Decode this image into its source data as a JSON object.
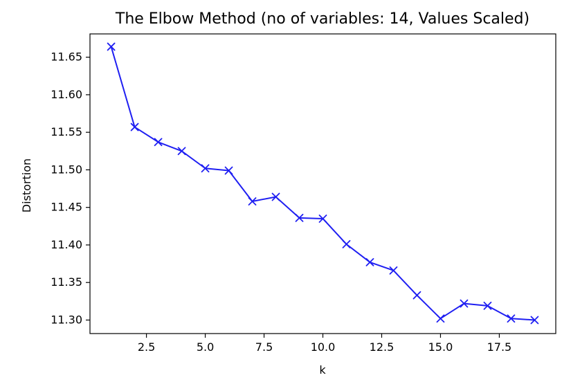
{
  "chart_data": {
    "type": "line",
    "title": "The Elbow Method (no of variables: 14, Values Scaled)",
    "xlabel": "k",
    "ylabel": "Distortion",
    "xlim": [
      0.1,
      19.9
    ],
    "ylim": [
      11.282,
      11.681
    ],
    "xticks": [
      2.5,
      5.0,
      7.5,
      10.0,
      12.5,
      15.0,
      17.5
    ],
    "xtick_labels": [
      "2.5",
      "5.0",
      "7.5",
      "10.0",
      "12.5",
      "15.0",
      "17.5"
    ],
    "yticks": [
      11.3,
      11.35,
      11.4,
      11.45,
      11.5,
      11.55,
      11.6,
      11.65
    ],
    "ytick_labels": [
      "11.30",
      "11.35",
      "11.40",
      "11.45",
      "11.50",
      "11.55",
      "11.60",
      "11.65"
    ],
    "grid": false,
    "legend": false,
    "series": [
      {
        "color": "#1f1ff2",
        "marker": "x",
        "x": [
          1,
          2,
          3,
          4,
          5,
          6,
          7,
          8,
          9,
          10,
          11,
          12,
          13,
          14,
          15,
          16,
          17,
          18,
          19
        ],
        "y": [
          11.664,
          11.557,
          11.537,
          11.525,
          11.502,
          11.499,
          11.458,
          11.464,
          11.436,
          11.435,
          11.401,
          11.377,
          11.366,
          11.333,
          11.302,
          11.322,
          11.319,
          11.302,
          11.3
        ]
      }
    ]
  }
}
